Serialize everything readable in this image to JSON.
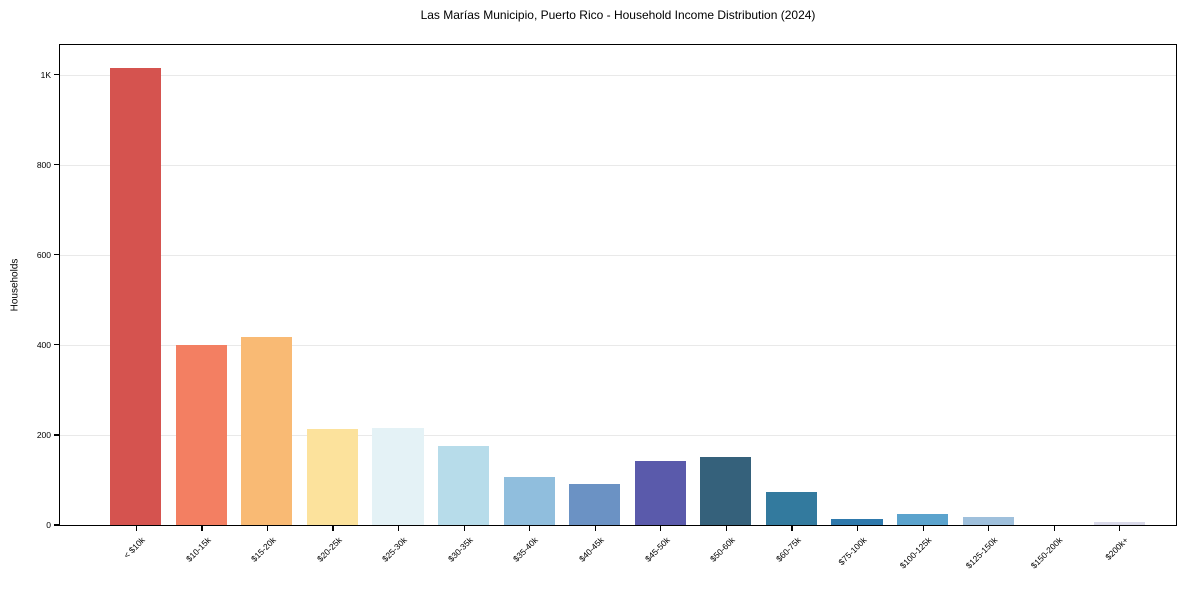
{
  "chart_data": {
    "type": "bar",
    "title": "Las Marías Municipio, Puerto Rico - Household Income Distribution (2024)",
    "xlabel": "",
    "ylabel": "Households",
    "categories": [
      "< $10k",
      "$10-15k",
      "$15-20k",
      "$20-25k",
      "$25-30k",
      "$30-35k",
      "$35-40k",
      "$40-45k",
      "$45-50k",
      "$50-60k",
      "$60-75k",
      "$75-100k",
      "$100-125k",
      "$125-150k",
      "$150-200k",
      "$200k+"
    ],
    "values": [
      1014,
      400,
      418,
      214,
      216,
      176,
      107,
      90,
      142,
      152,
      74,
      13,
      25,
      17,
      0,
      6
    ],
    "bar_colors": [
      "#d5534f",
      "#f37f62",
      "#f9ba74",
      "#fce29c",
      "#e4f2f6",
      "#b7dcea",
      "#90bedd",
      "#6b92c4",
      "#5a5aab",
      "#35617b",
      "#337a9e",
      "#2e79ac",
      "#5ba3cd",
      "#9fc0dc",
      "#c9d9e8",
      "#d9d9e9"
    ],
    "ylim": [
      0,
      1066
    ],
    "yticks": [
      {
        "value": 0,
        "label": "0"
      },
      {
        "value": 200,
        "label": "200"
      },
      {
        "value": 400,
        "label": "400"
      },
      {
        "value": 600,
        "label": "600"
      },
      {
        "value": 800,
        "label": "800"
      },
      {
        "value": 1000,
        "label": "1K"
      }
    ],
    "grid": "horizontal",
    "gridline_color": "#e9e9e9",
    "spine_color": "#000000",
    "background_color": "#ffffff",
    "x_tick_label_rotation_deg": 45
  }
}
